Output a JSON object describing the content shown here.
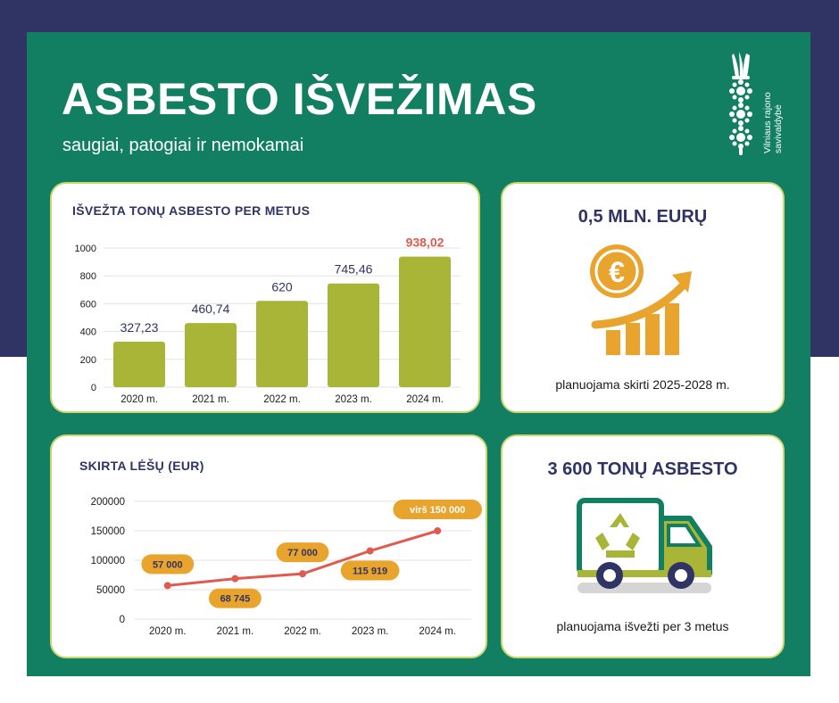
{
  "header": {
    "title": "ASBESTO IŠVEŽIMAS",
    "subtitle": "saugiai, patogiai ir nemokamai",
    "logo_text_line1": "Vilniaus rajono",
    "logo_text_line2": "savivaldybė"
  },
  "colors": {
    "navy": "#2f3464",
    "green": "#127f63",
    "bar": "#a9b536",
    "highlight": "#e05a4f",
    "orange": "#e8a42c"
  },
  "bar_card": {
    "title": "IŠVEŽTA TONŲ ASBESTO PER METUS"
  },
  "line_card": {
    "title": "SKIRTA LĖŠŲ (EUR)"
  },
  "money_card": {
    "title": "0,5 MLN. EURŲ",
    "caption": "planuojama skirti 2025-2028 m.",
    "icon": "euro-growth-icon",
    "euro_symbol": "€"
  },
  "truck_card": {
    "title": "3 600 TONŲ ASBESTO",
    "caption": "planuojama išvežti per 3 metus",
    "icon": "recycling-truck-icon"
  },
  "chart_data": [
    {
      "type": "bar",
      "title": "IŠVEŽTA TONŲ ASBESTO PER METUS",
      "categories": [
        "2020 m.",
        "2021 m.",
        "2022 m.",
        "2023 m.",
        "2024 m."
      ],
      "values": [
        327.23,
        460.74,
        620,
        745.46,
        938.02
      ],
      "value_labels": [
        "327,23",
        "460,74",
        "620",
        "745,46",
        "938,02"
      ],
      "highlight_index": 4,
      "ylim": [
        0,
        1000
      ],
      "yticks": [
        0,
        200,
        400,
        600,
        800,
        1000
      ],
      "grid": true
    },
    {
      "type": "line",
      "title": "SKIRTA LĖŠŲ (EUR)",
      "categories": [
        "2020 m.",
        "2021 m.",
        "2022 m.",
        "2023 m.",
        "2024 m."
      ],
      "values": [
        57000,
        68745,
        77000,
        115919,
        150000
      ],
      "value_labels": [
        "57 000",
        "68 745",
        "77 000",
        "115 919",
        "virš 150 000"
      ],
      "ylim": [
        0,
        200000
      ],
      "yticks": [
        0,
        50000,
        100000,
        150000,
        200000
      ],
      "grid": true
    }
  ]
}
